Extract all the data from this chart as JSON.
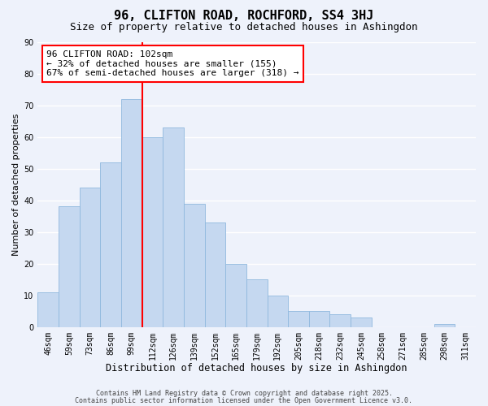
{
  "title1": "96, CLIFTON ROAD, ROCHFORD, SS4 3HJ",
  "title2": "Size of property relative to detached houses in Ashingdon",
  "xlabel": "Distribution of detached houses by size in Ashingdon",
  "ylabel": "Number of detached properties",
  "categories": [
    "46sqm",
    "59sqm",
    "73sqm",
    "86sqm",
    "99sqm",
    "112sqm",
    "126sqm",
    "139sqm",
    "152sqm",
    "165sqm",
    "179sqm",
    "192sqm",
    "205sqm",
    "218sqm",
    "232sqm",
    "245sqm",
    "258sqm",
    "271sqm",
    "285sqm",
    "298sqm",
    "311sqm"
  ],
  "values": [
    11,
    38,
    44,
    52,
    72,
    60,
    63,
    39,
    33,
    20,
    15,
    10,
    5,
    5,
    4,
    3,
    0,
    0,
    0,
    1,
    0
  ],
  "bar_color": "#c5d8f0",
  "bar_edge_color": "#8fb8de",
  "ylim": [
    0,
    90
  ],
  "yticks": [
    0,
    10,
    20,
    30,
    40,
    50,
    60,
    70,
    80,
    90
  ],
  "red_line_x": 5.0,
  "annotation_text": "96 CLIFTON ROAD: 102sqm\n← 32% of detached houses are smaller (155)\n67% of semi-detached houses are larger (318) →",
  "footnote1": "Contains HM Land Registry data © Crown copyright and database right 2025.",
  "footnote2": "Contains public sector information licensed under the Open Government Licence v3.0.",
  "background_color": "#eef2fb",
  "grid_color": "#ffffff",
  "title1_fontsize": 11,
  "title2_fontsize": 9,
  "xlabel_fontsize": 8.5,
  "ylabel_fontsize": 8,
  "tick_fontsize": 7,
  "annotation_fontsize": 8,
  "footnote_fontsize": 6
}
